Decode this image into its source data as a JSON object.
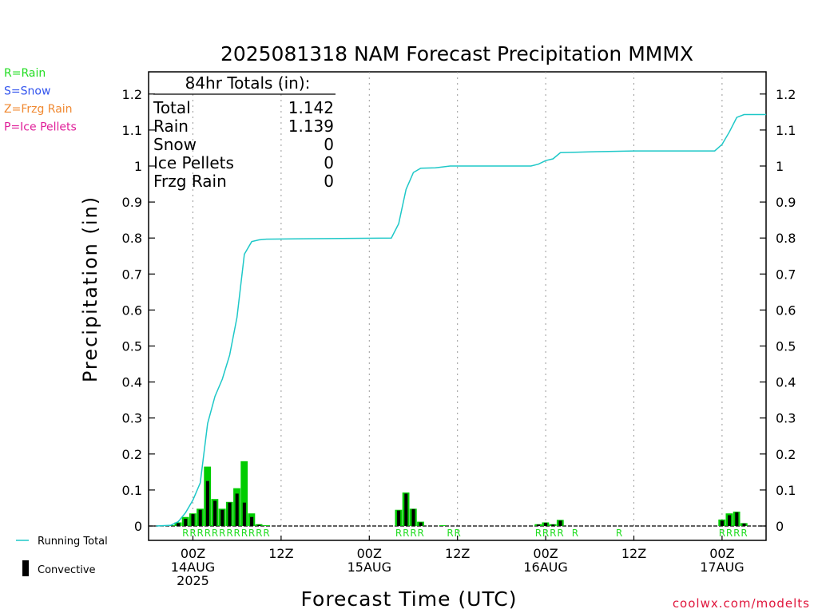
{
  "chart_data": {
    "type": "bar",
    "title": "2025081318 NAM Forecast Precipitation MMMX",
    "xlabel": "Forecast Time (UTC)",
    "ylabel": "Precipitation (in)",
    "ylim": [
      0,
      1.25
    ],
    "yticks": [
      0,
      0.1,
      0.2,
      0.3,
      0.4,
      0.5,
      0.6,
      0.7,
      0.8,
      0.9,
      1,
      1.1,
      1.2
    ],
    "ytick_labels": [
      "0",
      "0.1",
      "0.2",
      "0.3",
      "0.4",
      "0.5",
      "0.6",
      "0.7",
      "0.8",
      "0.9",
      "1",
      "1.1",
      "1.2"
    ],
    "grid": "vertical dotted",
    "xlim_hours": [
      -6,
      78
    ],
    "x_ticks": [
      {
        "hour": 0,
        "lines": [
          "00Z",
          "14AUG",
          "2025"
        ]
      },
      {
        "hour": 12,
        "lines": [
          "12Z"
        ]
      },
      {
        "hour": 24,
        "lines": [
          "00Z",
          "15AUG"
        ]
      },
      {
        "hour": 36,
        "lines": [
          "12Z"
        ]
      },
      {
        "hour": 48,
        "lines": [
          "00Z",
          "16AUG"
        ]
      },
      {
        "hour": 60,
        "lines": [
          "12Z"
        ]
      },
      {
        "hour": 72,
        "lines": [
          "00Z",
          "17AUG"
        ]
      }
    ],
    "hourly_total": [
      {
        "h": -3,
        "v": 0.002
      },
      {
        "h": -2,
        "v": 0.01
      },
      {
        "h": -1,
        "v": 0.025
      },
      {
        "h": 0,
        "v": 0.035
      },
      {
        "h": 1,
        "v": 0.048
      },
      {
        "h": 2,
        "v": 0.165
      },
      {
        "h": 3,
        "v": 0.075
      },
      {
        "h": 4,
        "v": 0.048
      },
      {
        "h": 5,
        "v": 0.067
      },
      {
        "h": 6,
        "v": 0.105
      },
      {
        "h": 7,
        "v": 0.18
      },
      {
        "h": 8,
        "v": 0.035
      },
      {
        "h": 9,
        "v": 0.005
      },
      {
        "h": 10,
        "v": 0.002
      },
      {
        "h": 28,
        "v": 0.045
      },
      {
        "h": 29,
        "v": 0.093
      },
      {
        "h": 30,
        "v": 0.048
      },
      {
        "h": 31,
        "v": 0.012
      },
      {
        "h": 34,
        "v": 0.002
      },
      {
        "h": 47,
        "v": 0.005
      },
      {
        "h": 48,
        "v": 0.01
      },
      {
        "h": 49,
        "v": 0.005
      },
      {
        "h": 50,
        "v": 0.017
      },
      {
        "h": 72,
        "v": 0.018
      },
      {
        "h": 73,
        "v": 0.035
      },
      {
        "h": 74,
        "v": 0.04
      },
      {
        "h": 75,
        "v": 0.008
      }
    ],
    "hourly_convective": [
      {
        "h": -3,
        "v": 0.001
      },
      {
        "h": -2,
        "v": 0.008
      },
      {
        "h": -1,
        "v": 0.02
      },
      {
        "h": 0,
        "v": 0.033
      },
      {
        "h": 1,
        "v": 0.045
      },
      {
        "h": 2,
        "v": 0.125
      },
      {
        "h": 3,
        "v": 0.07
      },
      {
        "h": 4,
        "v": 0.045
      },
      {
        "h": 5,
        "v": 0.065
      },
      {
        "h": 6,
        "v": 0.09
      },
      {
        "h": 7,
        "v": 0.065
      },
      {
        "h": 8,
        "v": 0.025
      },
      {
        "h": 9,
        "v": 0.003
      },
      {
        "h": 28,
        "v": 0.043
      },
      {
        "h": 29,
        "v": 0.09
      },
      {
        "h": 30,
        "v": 0.047
      },
      {
        "h": 31,
        "v": 0.01
      },
      {
        "h": 47,
        "v": 0.004
      },
      {
        "h": 48,
        "v": 0.009
      },
      {
        "h": 49,
        "v": 0.004
      },
      {
        "h": 50,
        "v": 0.015
      },
      {
        "h": 72,
        "v": 0.015
      },
      {
        "h": 73,
        "v": 0.03
      },
      {
        "h": 74,
        "v": 0.038
      },
      {
        "h": 75,
        "v": 0.007
      }
    ],
    "running_total": [
      {
        "h": -5,
        "v": 0
      },
      {
        "h": -3,
        "v": 0.002
      },
      {
        "h": -2,
        "v": 0.012
      },
      {
        "h": -1,
        "v": 0.037
      },
      {
        "h": 0,
        "v": 0.072
      },
      {
        "h": 1,
        "v": 0.12
      },
      {
        "h": 2,
        "v": 0.285
      },
      {
        "h": 3,
        "v": 0.36
      },
      {
        "h": 4,
        "v": 0.408
      },
      {
        "h": 5,
        "v": 0.475
      },
      {
        "h": 6,
        "v": 0.58
      },
      {
        "h": 7,
        "v": 0.755
      },
      {
        "h": 8,
        "v": 0.79
      },
      {
        "h": 9,
        "v": 0.795
      },
      {
        "h": 10,
        "v": 0.797
      },
      {
        "h": 27,
        "v": 0.8
      },
      {
        "h": 28,
        "v": 0.84
      },
      {
        "h": 29,
        "v": 0.935
      },
      {
        "h": 30,
        "v": 0.982
      },
      {
        "h": 31,
        "v": 0.994
      },
      {
        "h": 33,
        "v": 0.995
      },
      {
        "h": 35,
        "v": 1.0
      },
      {
        "h": 46,
        "v": 1.0
      },
      {
        "h": 47,
        "v": 1.005
      },
      {
        "h": 48,
        "v": 1.015
      },
      {
        "h": 49,
        "v": 1.02
      },
      {
        "h": 50,
        "v": 1.037
      },
      {
        "h": 55,
        "v": 1.04
      },
      {
        "h": 60,
        "v": 1.042
      },
      {
        "h": 71,
        "v": 1.042
      },
      {
        "h": 72,
        "v": 1.06
      },
      {
        "h": 73,
        "v": 1.095
      },
      {
        "h": 74,
        "v": 1.135
      },
      {
        "h": 75,
        "v": 1.143
      },
      {
        "h": 78,
        "v": 1.143
      }
    ],
    "ptype_markers": [
      {
        "h": -1,
        "label": "R"
      },
      {
        "h": 0,
        "label": "R"
      },
      {
        "h": 1,
        "label": "R"
      },
      {
        "h": 2,
        "label": "R"
      },
      {
        "h": 3,
        "label": "R"
      },
      {
        "h": 4,
        "label": "R"
      },
      {
        "h": 5,
        "label": "R"
      },
      {
        "h": 6,
        "label": "R"
      },
      {
        "h": 7,
        "label": "R"
      },
      {
        "h": 8,
        "label": "R"
      },
      {
        "h": 9,
        "label": "R"
      },
      {
        "h": 10,
        "label": "R"
      },
      {
        "h": 28,
        "label": "R"
      },
      {
        "h": 29,
        "label": "R"
      },
      {
        "h": 30,
        "label": "R"
      },
      {
        "h": 31,
        "label": "R"
      },
      {
        "h": 35,
        "label": "R"
      },
      {
        "h": 36,
        "label": "R"
      },
      {
        "h": 47,
        "label": "R"
      },
      {
        "h": 48,
        "label": "R"
      },
      {
        "h": 49,
        "label": "R"
      },
      {
        "h": 50,
        "label": "R"
      },
      {
        "h": 52,
        "label": "R"
      },
      {
        "h": 58,
        "label": "R"
      },
      {
        "h": 72,
        "label": "R"
      },
      {
        "h": 73,
        "label": "R"
      },
      {
        "h": 74,
        "label": "R"
      },
      {
        "h": 75,
        "label": "R"
      }
    ],
    "totals_box": {
      "heading": "84hr Totals (in):",
      "rows": [
        {
          "label": "Total",
          "value": "1.142"
        },
        {
          "label": "Rain",
          "value": "1.139"
        },
        {
          "label": "Snow",
          "value": "0"
        },
        {
          "label": "Ice Pellets",
          "value": "0"
        },
        {
          "label": "Frzg Rain",
          "value": "0"
        }
      ]
    },
    "ptype_key": [
      {
        "text": "R=Rain",
        "color": "#22dd22"
      },
      {
        "text": "S=Snow",
        "color": "#3355ee"
      },
      {
        "text": "Z=Frzg Rain",
        "color": "#f08830"
      },
      {
        "text": "P=Ice Pellets",
        "color": "#e0209a"
      }
    ],
    "legend": [
      {
        "name": "Running Total",
        "color": "#1ec8c8",
        "kind": "line"
      },
      {
        "name": "Convective",
        "color": "#000000",
        "kind": "bar"
      }
    ],
    "colors": {
      "total_bar": "#00cc00",
      "convective_bar": "#000000",
      "running_total": "#1ec8c8",
      "ptype_text": "#22dd22"
    },
    "credit": "coolwx.com/modelts"
  }
}
